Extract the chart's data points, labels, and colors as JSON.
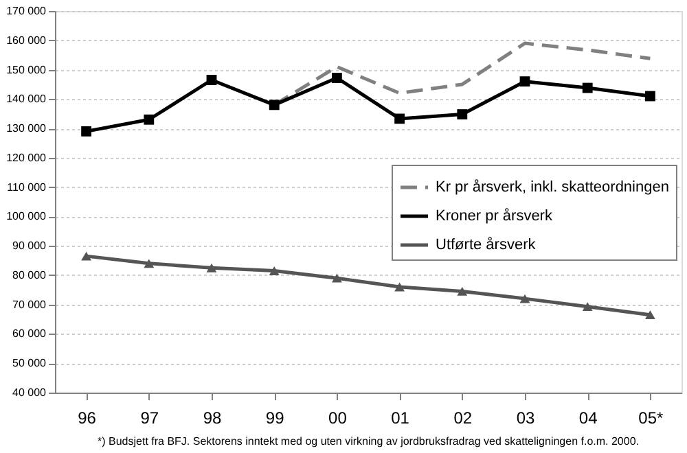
{
  "chart_data": {
    "type": "line",
    "categories": [
      "96",
      "97",
      "98",
      "99",
      "00",
      "01",
      "02",
      "03",
      "04",
      "05*"
    ],
    "series": [
      {
        "name": "Kr pr årsverk, inkl. skatteordningen",
        "color": "#808080",
        "line_style": "dashed",
        "marker": "none",
        "values": [
          null,
          null,
          null,
          138000,
          151000,
          142000,
          145000,
          159000,
          156700,
          153800
        ]
      },
      {
        "name": "Kroner pr årsverk",
        "color": "#000000",
        "line_style": "solid",
        "marker": "square",
        "values": [
          129000,
          133000,
          146500,
          138000,
          147200,
          133300,
          134800,
          146000,
          143800,
          141000
        ]
      },
      {
        "name": "Utførte årsverk",
        "color": "#555555",
        "line_style": "solid",
        "marker": "triangle",
        "values": [
          86500,
          84000,
          82500,
          81500,
          79000,
          76000,
          74500,
          72000,
          69300,
          66500
        ]
      }
    ],
    "ylim": [
      40000,
      170000
    ],
    "yticks": [
      {
        "value": 40000,
        "label": "40 000"
      },
      {
        "value": 50000,
        "label": "50 000"
      },
      {
        "value": 60000,
        "label": "60 000"
      },
      {
        "value": 70000,
        "label": "70 000"
      },
      {
        "value": 80000,
        "label": "80 000"
      },
      {
        "value": 90000,
        "label": "90 000"
      },
      {
        "value": 100000,
        "label": "100 000"
      },
      {
        "value": 110000,
        "label": "110 000"
      },
      {
        "value": 120000,
        "label": "120 000"
      },
      {
        "value": 130000,
        "label": "130 000"
      },
      {
        "value": 140000,
        "label": "140 000"
      },
      {
        "value": 150000,
        "label": "150 000"
      },
      {
        "value": 160000,
        "label": "160 000"
      },
      {
        "value": 170000,
        "label": "170 000"
      }
    ],
    "grid": "y",
    "legend": "right",
    "annotations": [
      "*) Budsjett fra BFJ. Sektorens inntekt med og uten virkning av jordbruksfradrag ved skatteligningen f.o.m. 2000."
    ]
  }
}
